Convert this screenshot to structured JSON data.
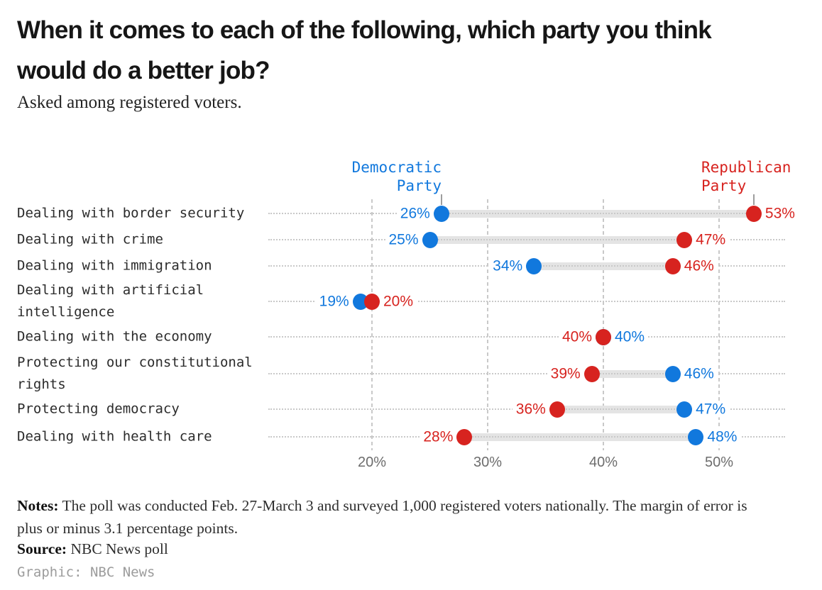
{
  "header": {
    "title_line1": "When it comes to each of the following, which party you think",
    "title_line2": "would do a better job?",
    "subtitle": "Asked among registered voters."
  },
  "legend": {
    "dem_label": "Democratic Party",
    "rep_label": "Republican Party"
  },
  "chart_data": {
    "type": "dumbbell",
    "title": "When it comes to each of the following, which party you think would do a better job?",
    "subtitle": "Asked among registered voters.",
    "categories": [
      "Dealing with border security",
      "Dealing with crime",
      "Dealing with immigration",
      "Dealing with artificial intelligence",
      "Dealing with the economy",
      "Protecting our constitutional rights",
      "Protecting democracy",
      "Dealing with health care"
    ],
    "series": [
      {
        "name": "Democratic Party",
        "color": "#1178dd",
        "values": [
          26,
          25,
          34,
          19,
          40,
          46,
          47,
          48
        ]
      },
      {
        "name": "Republican Party",
        "color": "#d7231f",
        "values": [
          53,
          47,
          46,
          20,
          40,
          39,
          36,
          28
        ]
      }
    ],
    "value_suffix": "%",
    "x_ticks": [
      20,
      30,
      40,
      50
    ],
    "x_tick_labels": [
      "20%",
      "30%",
      "40%",
      "50%"
    ],
    "xlim": [
      15,
      57
    ],
    "grid": "vertical-dashed",
    "legend_position": "top",
    "connector_color": "#e4e4e4",
    "gridline_color": "#c9c9c9"
  },
  "footer": {
    "notes_label": "Notes:",
    "notes_text": "The poll was conducted Feb. 27-March 3 and surveyed 1,000 registered voters nationally. The margin of error is plus or minus 3.1 percentage points.",
    "source_label": "Source:",
    "source_text": "NBC News poll",
    "credit": "Graphic: NBC News"
  }
}
